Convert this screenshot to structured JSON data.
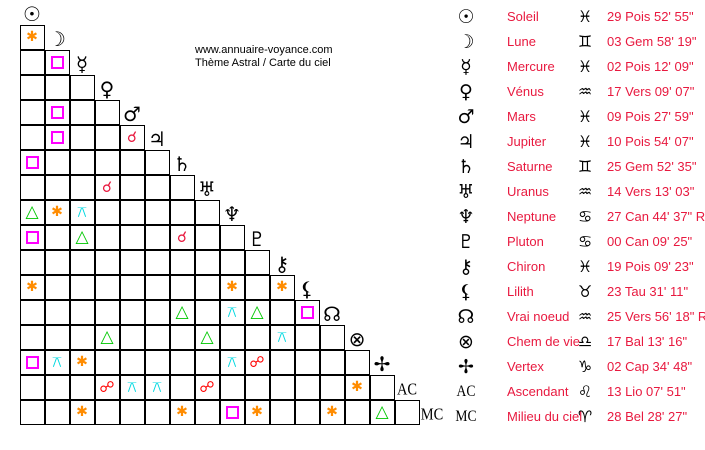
{
  "site": {
    "url": "www.annuaire-voyance.com",
    "subtitle": "Thème Astral / Carte du ciel"
  },
  "aspect_styles": {
    "sextile": {
      "symbol": "✱",
      "color": "#ff8c00"
    },
    "square": {
      "symbol": "",
      "color": "#ff00ff"
    },
    "trine": {
      "symbol": "△",
      "color": "#00c800"
    },
    "conjunction": {
      "symbol": "☌",
      "color": "#e8193f"
    },
    "opposition": {
      "symbol": "☍",
      "color": "#ff0000"
    },
    "quincunx": {
      "symbol": "⚻",
      "color": "#00d8e0"
    }
  },
  "planets": [
    {
      "icon": "sun-icon",
      "glyph": "☉",
      "name": "Soleil",
      "sign_icon": "pisces-icon",
      "sign": "♓",
      "position": "29 Pois 52' 55\""
    },
    {
      "icon": "moon-icon",
      "glyph": "☽",
      "name": "Lune",
      "sign_icon": "gemini-icon",
      "sign": "♊",
      "position": "03 Gem 58' 19\""
    },
    {
      "icon": "mercury-icon",
      "glyph": "☿",
      "name": "Mercure",
      "sign_icon": "pisces-icon",
      "sign": "♓",
      "position": "02 Pois 12' 09\""
    },
    {
      "icon": "venus-icon",
      "glyph": "♀",
      "name": "Vénus",
      "sign_icon": "aquarius-icon",
      "sign": "♒",
      "position": "17 Vers 09' 07\""
    },
    {
      "icon": "mars-icon",
      "glyph": "♂",
      "name": "Mars",
      "sign_icon": "pisces-icon",
      "sign": "♓",
      "position": "09 Pois 27' 59\""
    },
    {
      "icon": "jupiter-icon",
      "glyph": "♃",
      "name": "Jupiter",
      "sign_icon": "pisces-icon",
      "sign": "♓",
      "position": "10 Pois 54' 07\""
    },
    {
      "icon": "saturn-icon",
      "glyph": "♄",
      "name": "Saturne",
      "sign_icon": "gemini-icon",
      "sign": "♊",
      "position": "25 Gem 52' 35\""
    },
    {
      "icon": "uranus-icon",
      "glyph": "♅",
      "name": "Uranus",
      "sign_icon": "aquarius-icon",
      "sign": "♒",
      "position": "14 Vers 13' 03\""
    },
    {
      "icon": "neptune-icon",
      "glyph": "♆",
      "name": "Neptune",
      "sign_icon": "cancer-icon",
      "sign": "♋",
      "position": "27 Can 44' 37\" R"
    },
    {
      "icon": "pluto-icon",
      "glyph": "♇",
      "name": "Pluton",
      "sign_icon": "cancer-icon",
      "sign": "♋",
      "position": "00 Can 09' 25\""
    },
    {
      "icon": "chiron-icon",
      "glyph": "⚷",
      "name": "Chiron",
      "sign_icon": "pisces-icon",
      "sign": "♓",
      "position": "19 Pois 09' 23\""
    },
    {
      "icon": "lilith-icon",
      "glyph": "⚸",
      "name": "Lilith",
      "sign_icon": "taurus-icon",
      "sign": "♉",
      "position": "23 Tau 31' 11\""
    },
    {
      "icon": "true-node-icon",
      "glyph": "☊",
      "name": "Vrai noeud",
      "sign_icon": "aquarius-icon",
      "sign": "♒",
      "position": "25 Vers 56' 18\" R"
    },
    {
      "icon": "part-of-fortune-icon",
      "glyph": "⊗",
      "name": "Chem de vie",
      "sign_icon": "libra-icon",
      "sign": "♎",
      "position": "17 Bal 13' 16\""
    },
    {
      "icon": "vertex-icon",
      "glyph": "✢",
      "name": "Vertex",
      "sign_icon": "capricorn-icon",
      "sign": "♑",
      "position": "02 Cap 34' 48\""
    },
    {
      "icon": "ascendant-icon",
      "glyph": "AC",
      "name": "Ascendant",
      "sign_icon": "leo-icon",
      "sign": "♌",
      "position": "13 Lio 07' 51\""
    },
    {
      "icon": "midheaven-icon",
      "glyph": "MC",
      "name": "Milieu du ciel",
      "sign_icon": "aries-icon",
      "sign": "♈",
      "position": "28 Bel 28' 27\""
    }
  ],
  "aspects": [
    {
      "a": 1,
      "b": 0,
      "type": "sextile"
    },
    {
      "a": 2,
      "b": 1,
      "type": "square"
    },
    {
      "a": 4,
      "b": 1,
      "type": "square"
    },
    {
      "a": 5,
      "b": 1,
      "type": "square"
    },
    {
      "a": 5,
      "b": 4,
      "type": "conjunction"
    },
    {
      "a": 6,
      "b": 0,
      "type": "square"
    },
    {
      "a": 7,
      "b": 3,
      "type": "conjunction"
    },
    {
      "a": 8,
      "b": 0,
      "type": "trine"
    },
    {
      "a": 8,
      "b": 1,
      "type": "sextile"
    },
    {
      "a": 8,
      "b": 2,
      "type": "quincunx"
    },
    {
      "a": 9,
      "b": 0,
      "type": "square"
    },
    {
      "a": 9,
      "b": 2,
      "type": "trine"
    },
    {
      "a": 9,
      "b": 6,
      "type": "conjunction"
    },
    {
      "a": 11,
      "b": 0,
      "type": "sextile"
    },
    {
      "a": 11,
      "b": 8,
      "type": "sextile"
    },
    {
      "a": 11,
      "b": 10,
      "type": "sextile"
    },
    {
      "a": 12,
      "b": 6,
      "type": "trine"
    },
    {
      "a": 12,
      "b": 8,
      "type": "quincunx"
    },
    {
      "a": 12,
      "b": 9,
      "type": "trine"
    },
    {
      "a": 12,
      "b": 11,
      "type": "square"
    },
    {
      "a": 13,
      "b": 3,
      "type": "trine"
    },
    {
      "a": 13,
      "b": 7,
      "type": "trine"
    },
    {
      "a": 13,
      "b": 10,
      "type": "quincunx"
    },
    {
      "a": 14,
      "b": 0,
      "type": "square"
    },
    {
      "a": 14,
      "b": 1,
      "type": "quincunx"
    },
    {
      "a": 14,
      "b": 2,
      "type": "sextile"
    },
    {
      "a": 14,
      "b": 8,
      "type": "quincunx"
    },
    {
      "a": 14,
      "b": 9,
      "type": "opposition"
    },
    {
      "a": 15,
      "b": 3,
      "type": "opposition"
    },
    {
      "a": 15,
      "b": 4,
      "type": "quincunx"
    },
    {
      "a": 15,
      "b": 5,
      "type": "quincunx"
    },
    {
      "a": 15,
      "b": 7,
      "type": "opposition"
    },
    {
      "a": 15,
      "b": 13,
      "type": "sextile"
    },
    {
      "a": 16,
      "b": 2,
      "type": "sextile"
    },
    {
      "a": 16,
      "b": 6,
      "type": "sextile"
    },
    {
      "a": 16,
      "b": 8,
      "type": "square"
    },
    {
      "a": 16,
      "b": 9,
      "type": "sextile"
    },
    {
      "a": 16,
      "b": 12,
      "type": "sextile"
    },
    {
      "a": 16,
      "b": 14,
      "type": "trine"
    }
  ]
}
